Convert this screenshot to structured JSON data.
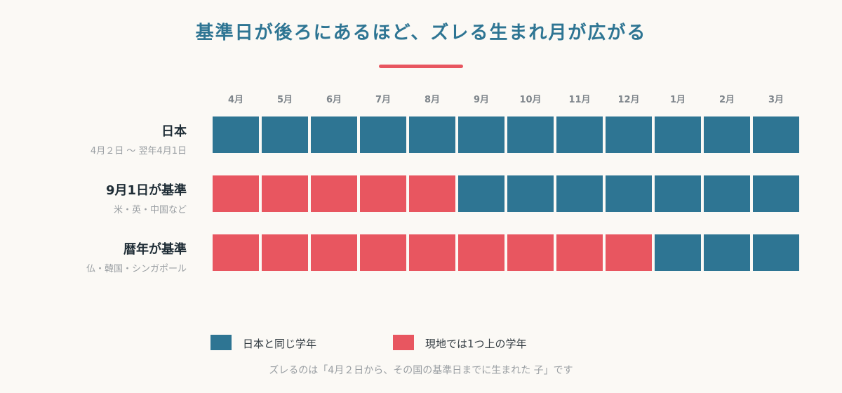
{
  "title": "基準日が後ろにあるほど、ズレる生まれ月が広がる",
  "colors": {
    "same": "#2e7593",
    "ahead": "#e85660",
    "title": "#2e7593"
  },
  "chart_data": {
    "type": "heatmap",
    "title": "基準日が後ろにあるほど、ズレる生まれ月が広がる",
    "months": [
      "4月",
      "5月",
      "6月",
      "7月",
      "8月",
      "9月",
      "10月",
      "11月",
      "12月",
      "1月",
      "2月",
      "3月"
    ],
    "rows": [
      {
        "label": "日本",
        "sub": "4月２日 〜 翌年4月1日",
        "ahead_count": 0,
        "values": [
          0,
          0,
          0,
          0,
          0,
          0,
          0,
          0,
          0,
          0,
          0,
          0
        ]
      },
      {
        "label": "9月1日が基準",
        "sub": "米・英・中国など",
        "ahead_count": 5,
        "values": [
          1,
          1,
          1,
          1,
          1,
          0,
          0,
          0,
          0,
          0,
          0,
          0
        ]
      },
      {
        "label": "暦年が基準",
        "sub": "仏・韓国・シンガポール",
        "ahead_count": 9,
        "values": [
          1,
          1,
          1,
          1,
          1,
          1,
          1,
          1,
          1,
          0,
          0,
          0
        ]
      }
    ],
    "legend": [
      {
        "label": "日本と同じ学年",
        "value": 0,
        "color": "#2e7593"
      },
      {
        "label": "現地では1つ上の学年",
        "value": 1,
        "color": "#e85660"
      }
    ]
  },
  "footnote": "ズレるのは「4月２日から、その国の基準日までに生まれた 子」です"
}
